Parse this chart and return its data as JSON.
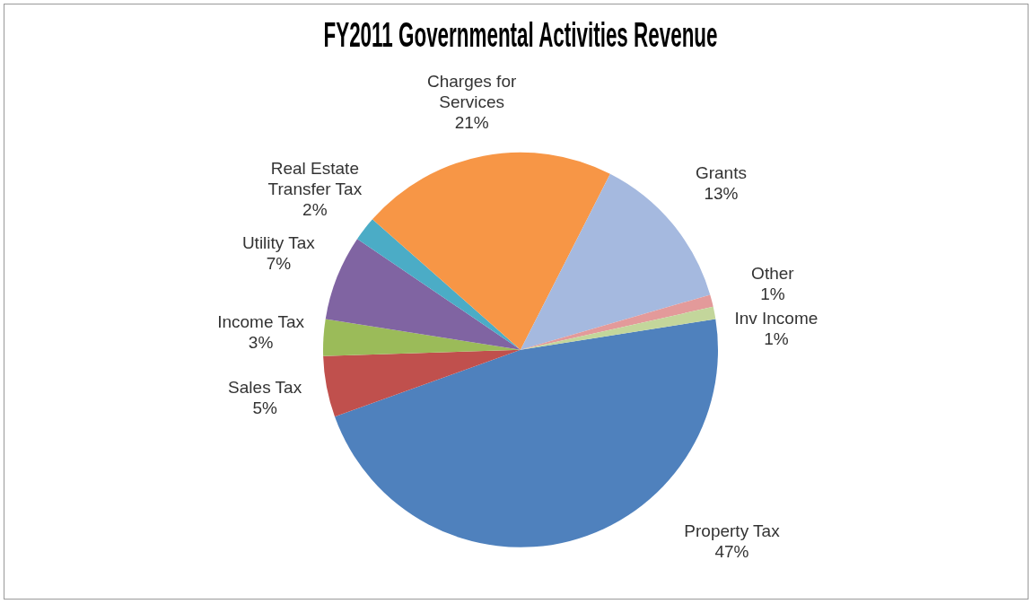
{
  "chart_data": {
    "type": "pie",
    "title": "FY2011 Governmental Activities Revenue",
    "categories": [
      "Property Tax",
      "Sales Tax",
      "Income Tax",
      "Utility Tax",
      "Real Estate Transfer Tax",
      "Charges for Services",
      "Grants",
      "Other",
      "Inv Income"
    ],
    "values": [
      47,
      5,
      3,
      7,
      2,
      21,
      13,
      1,
      1
    ],
    "colors": [
      "#4f81bd",
      "#c0504d",
      "#9bbb59",
      "#8064a2",
      "#4bacc6",
      "#f79646",
      "#a5b9df",
      "#e39a9a",
      "#c3d69b"
    ],
    "value_labels": [
      "47%",
      "5%",
      "3%",
      "7%",
      "2%",
      "21%",
      "13%",
      "1%",
      "1%"
    ],
    "legend": false
  }
}
